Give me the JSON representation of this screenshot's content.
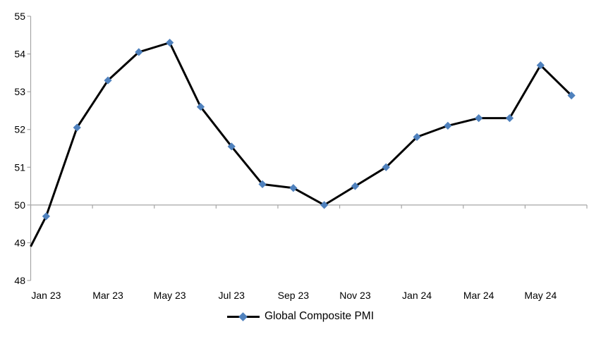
{
  "chart_data": {
    "type": "line",
    "categories": [
      "Jan 23",
      "Feb 23",
      "Mar 23",
      "Apr 23",
      "May 23",
      "Jun 23",
      "Jul 23",
      "Aug 23",
      "Sep 23",
      "Oct 23",
      "Nov 23",
      "Dec 23",
      "Jan 24",
      "Feb 24",
      "Mar 24",
      "Apr 24",
      "May 24",
      "Jun 24"
    ],
    "series": [
      {
        "name": "Global Composite PMI",
        "values": [
          49.7,
          52.05,
          53.3,
          54.05,
          54.3,
          52.6,
          51.55,
          50.55,
          50.45,
          50.0,
          50.5,
          51.0,
          51.8,
          52.1,
          52.3,
          52.3,
          53.7,
          52.9
        ],
        "line_color": "#000000",
        "marker": "diamond",
        "marker_color": "#4F81BD"
      }
    ],
    "axis_lead_in_value": 48.9,
    "ylim": [
      48,
      55
    ],
    "y_ticks": [
      48,
      49,
      50,
      51,
      52,
      53,
      54,
      55
    ],
    "x_tick_labels": [
      "Jan 23",
      "Mar 23",
      "May 23",
      "Jul 23",
      "Sep 23",
      "Nov 23",
      "Jan 24",
      "Mar 24",
      "May 24"
    ],
    "x_label_every": 2,
    "gridline_value": 50,
    "axis_color": "#A6A6A6",
    "grid": "single-line-at-50",
    "legend_position": "bottom-center"
  },
  "legend": {
    "label": "Global Composite PMI"
  }
}
